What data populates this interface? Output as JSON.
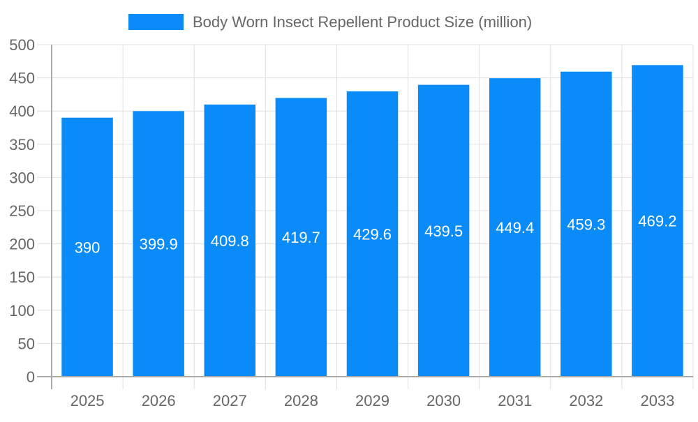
{
  "chart_data": {
    "type": "bar",
    "title": "",
    "xlabel": "",
    "ylabel": "",
    "legend": {
      "position": "top",
      "entries": [
        "Body Worn Insect Repellent Product Size (million)"
      ]
    },
    "categories": [
      "2025",
      "2026",
      "2027",
      "2028",
      "2029",
      "2030",
      "2031",
      "2032",
      "2033"
    ],
    "series": [
      {
        "name": "Body Worn Insect Repellent Product Size (million)",
        "values": [
          390,
          399.9,
          409.8,
          419.7,
          429.6,
          439.5,
          449.4,
          459.3,
          469.2
        ],
        "color": "#0a8bf7"
      }
    ],
    "ylim": [
      0,
      500
    ],
    "yticks": [
      0,
      50,
      100,
      150,
      200,
      250,
      300,
      350,
      400,
      450,
      500
    ],
    "grid": true,
    "data_labels": true
  }
}
